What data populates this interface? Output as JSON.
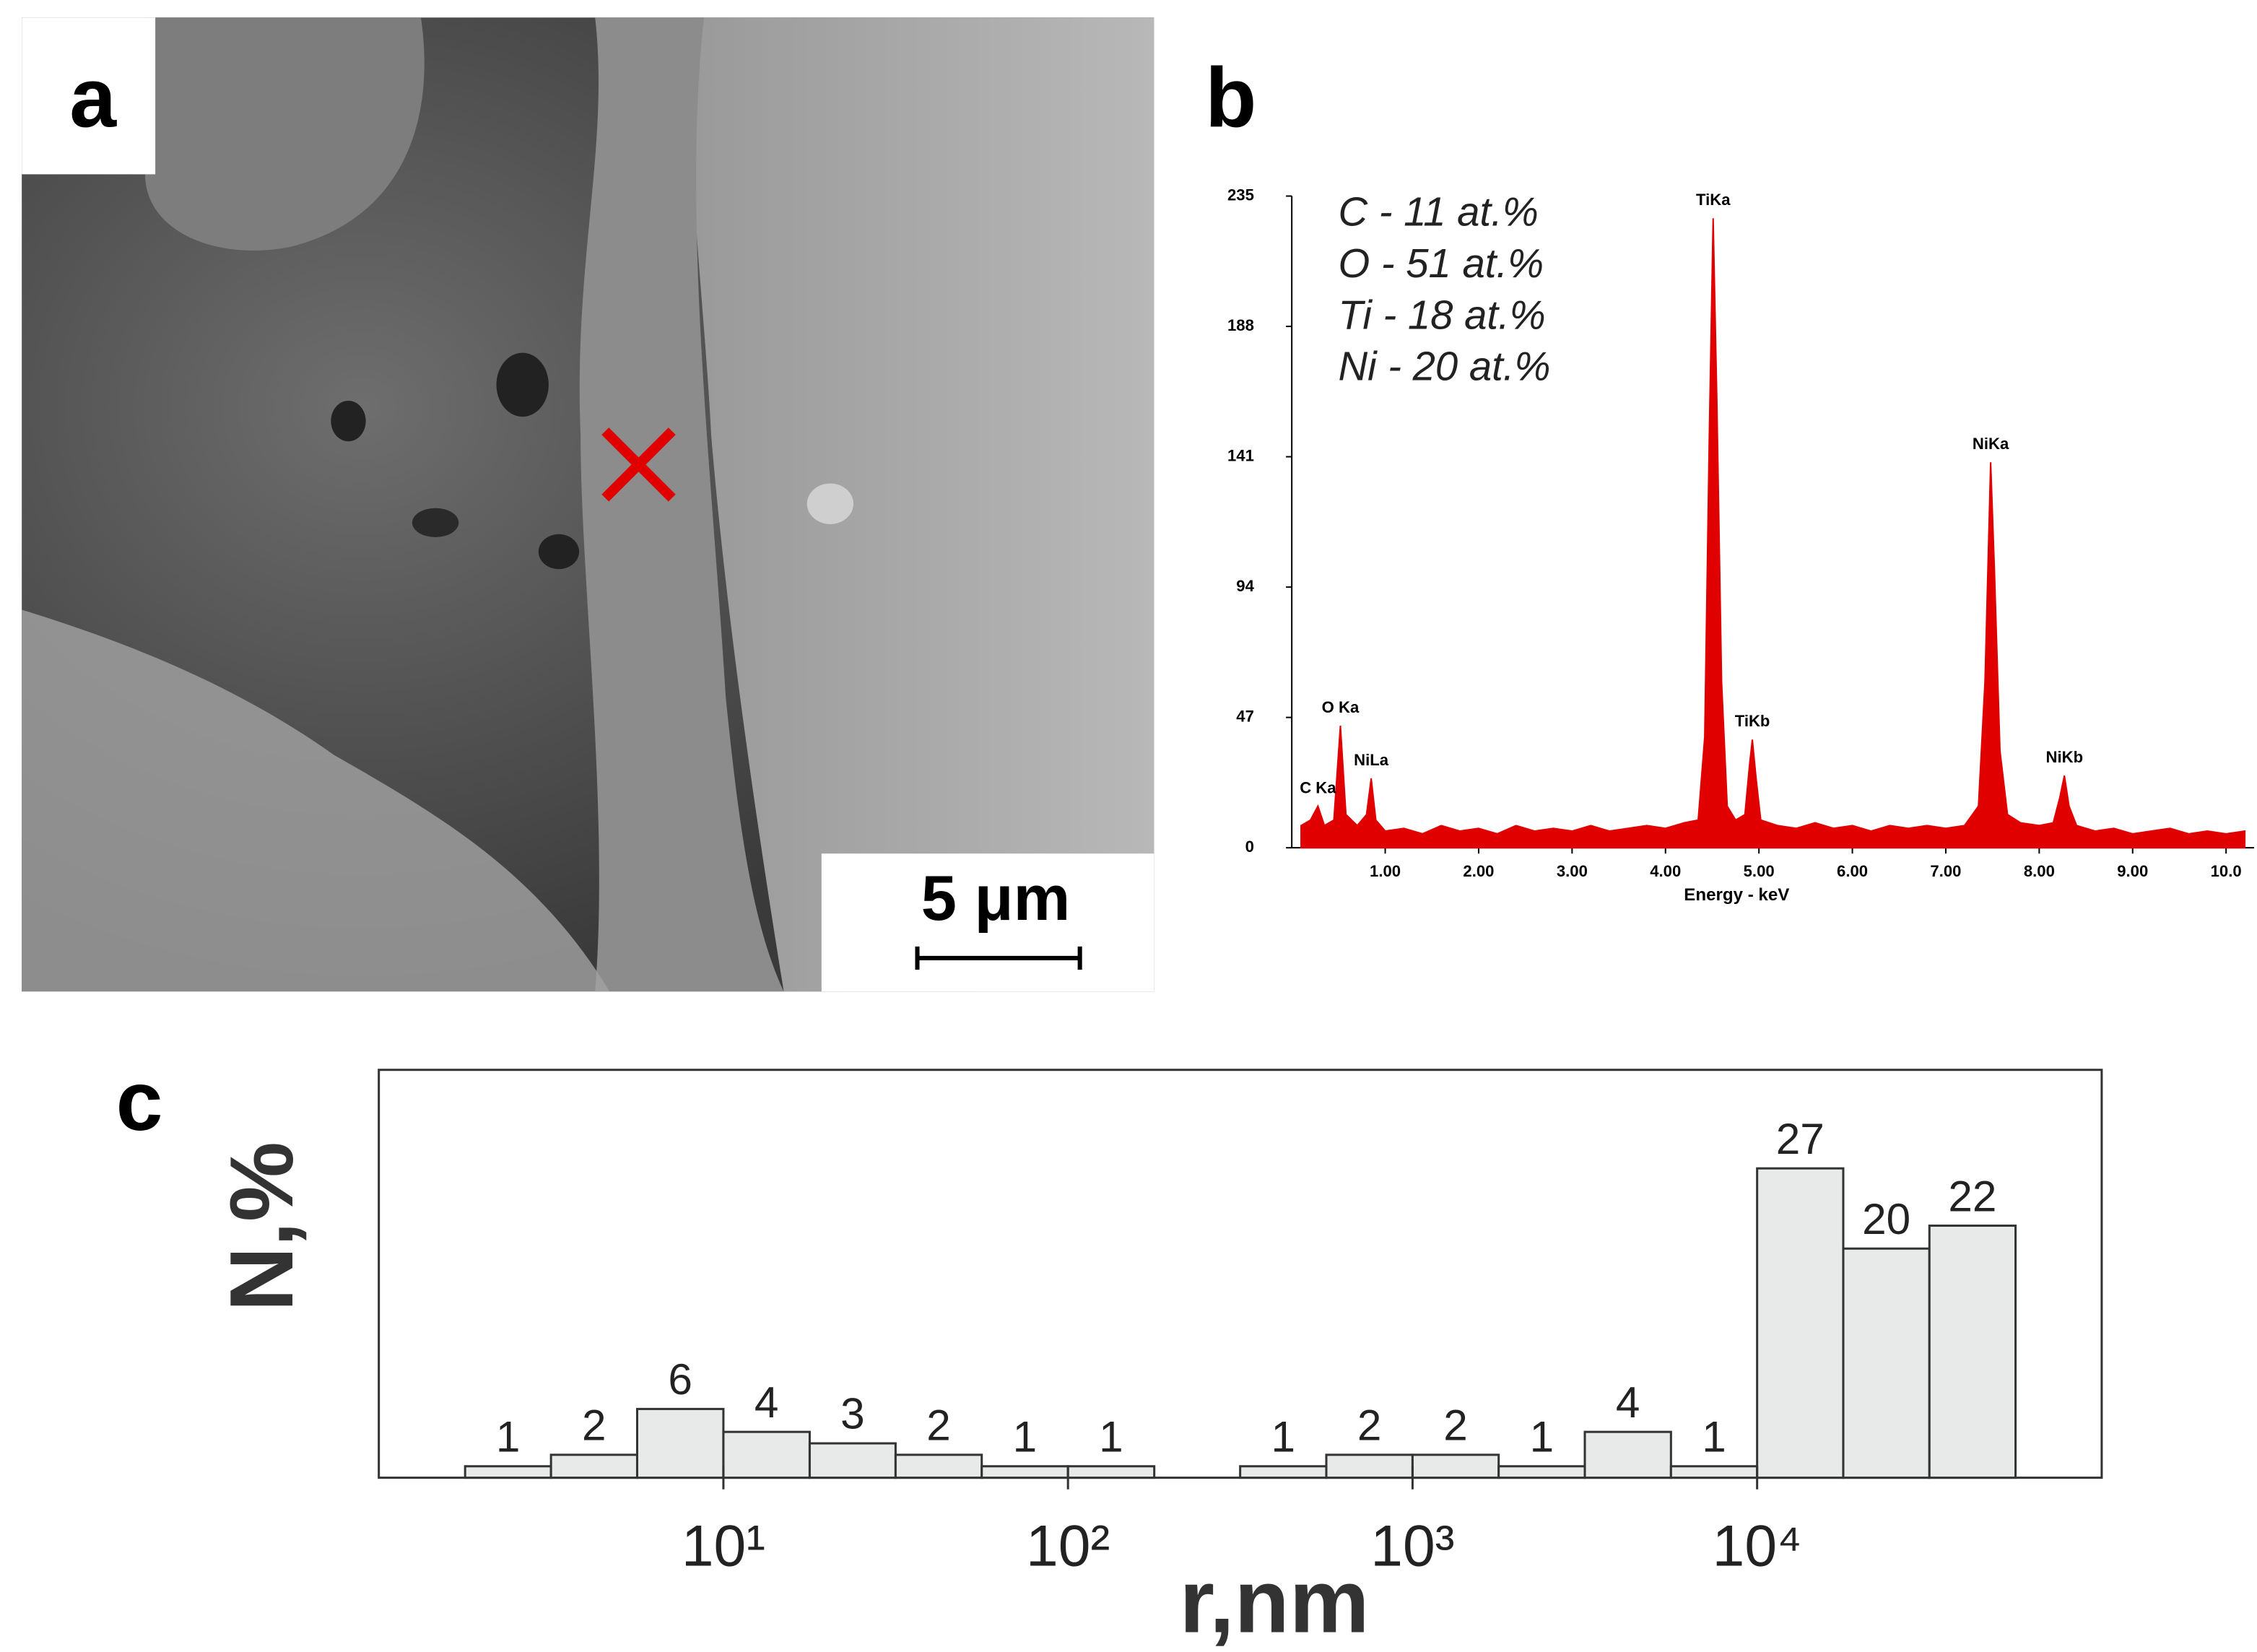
{
  "image_panel": {
    "label": "a",
    "scale_bar": "5 μm"
  },
  "chart_data": [
    {
      "type": "area",
      "panel_label": "b",
      "xlabel": "Energy - keV",
      "color": "#e00000",
      "annotations": [
        "C - 11 at.%",
        "O - 51 at.%",
        "Ti - 18 at.%",
        "Ni - 20 at.%"
      ],
      "peak_labels": [
        {
          "text": "C Ka",
          "x": 0.28
        },
        {
          "text": "O Ka",
          "x": 0.52
        },
        {
          "text": "NiLa",
          "x": 0.85
        },
        {
          "text": "TiKa",
          "x": 4.51
        },
        {
          "text": "TiKb",
          "x": 4.93
        },
        {
          "text": "NiKa",
          "x": 7.48
        },
        {
          "text": "NiKb",
          "x": 8.27
        }
      ],
      "x": [
        0.1,
        0.2,
        0.28,
        0.35,
        0.45,
        0.52,
        0.58,
        0.7,
        0.8,
        0.85,
        0.9,
        1.0,
        1.2,
        1.4,
        1.6,
        1.8,
        2.0,
        2.2,
        2.4,
        2.6,
        2.8,
        3.0,
        3.2,
        3.4,
        3.6,
        3.8,
        4.0,
        4.2,
        4.35,
        4.42,
        4.47,
        4.51,
        4.55,
        4.6,
        4.66,
        4.75,
        4.85,
        4.9,
        4.93,
        4.97,
        5.02,
        5.2,
        5.4,
        5.6,
        5.8,
        6.0,
        6.2,
        6.4,
        6.6,
        6.8,
        7.0,
        7.2,
        7.35,
        7.42,
        7.48,
        7.52,
        7.58,
        7.66,
        7.8,
        8.0,
        8.15,
        8.22,
        8.27,
        8.32,
        8.4,
        8.6,
        8.8,
        9.0,
        9.2,
        9.4,
        9.6,
        9.8,
        10.0,
        10.2
      ],
      "values": [
        8,
        10,
        15,
        8,
        10,
        44,
        12,
        8,
        12,
        25,
        10,
        6,
        7,
        5,
        8,
        6,
        7,
        5,
        8,
        6,
        7,
        6,
        8,
        6,
        7,
        8,
        7,
        9,
        10,
        40,
        150,
        227,
        160,
        60,
        15,
        10,
        12,
        30,
        39,
        25,
        10,
        8,
        7,
        9,
        7,
        8,
        6,
        8,
        7,
        8,
        7,
        8,
        15,
        60,
        139,
        100,
        35,
        12,
        9,
        8,
        9,
        18,
        26,
        15,
        8,
        6,
        7,
        5,
        6,
        7,
        5,
        6,
        5,
        6
      ],
      "xlim": [
        0,
        10.3
      ],
      "ylim": [
        0,
        235
      ],
      "yticks": [
        0,
        47,
        94,
        141,
        188,
        235
      ],
      "xticks": [
        {
          "value": 1,
          "label": "1.00"
        },
        {
          "value": 2,
          "label": "2.00"
        },
        {
          "value": 3,
          "label": "3.00"
        },
        {
          "value": 4,
          "label": "4.00"
        },
        {
          "value": 5,
          "label": "5.00"
        },
        {
          "value": 6,
          "label": "6.00"
        },
        {
          "value": 7,
          "label": "7.00"
        },
        {
          "value": 8,
          "label": "8.00"
        },
        {
          "value": 9,
          "label": "9.00"
        },
        {
          "value": 10,
          "label": "10.0"
        }
      ]
    },
    {
      "type": "histogram",
      "panel_label": "c",
      "xlabel": "r,nm",
      "ylabel": "N,%",
      "log_x": true,
      "color": "#e8eaea",
      "bins": [
        1.78,
        3.16,
        5.62,
        10,
        17.8,
        31.6,
        56.2,
        100,
        178,
        316,
        562,
        1000,
        1778,
        3162,
        5623,
        10000,
        17783,
        31623,
        56234
      ],
      "values": [
        1,
        2,
        6,
        4,
        3,
        2,
        1,
        1,
        null,
        1,
        2,
        2,
        1,
        4,
        1,
        27,
        20,
        22
      ],
      "xlim": [
        1,
        100000
      ],
      "ylim": [
        0,
        35.6
      ],
      "xticks": [
        {
          "value": 10,
          "label": "10¹"
        },
        {
          "value": 100,
          "label": "10²"
        },
        {
          "value": 1000,
          "label": "10³"
        },
        {
          "value": 10000,
          "label": "10⁴"
        }
      ]
    }
  ]
}
